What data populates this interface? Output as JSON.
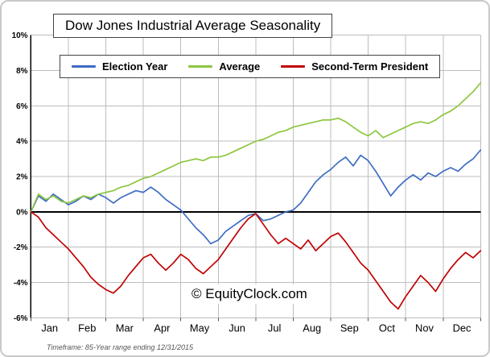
{
  "page": {
    "watermark": "© EquityClock.com",
    "footnote": "Timeframe: 85-Year range ending 12/31/2015"
  },
  "colors": {
    "grid": "#bdbdbd",
    "zero_line": "#000000",
    "axis": "#000000",
    "frame_border": "#c9c9c9"
  },
  "chart_data": {
    "type": "line",
    "title": "Dow Jones Industrial Average Seasonality",
    "legend_position": "top",
    "grid": true,
    "x_axis": {
      "categories": [
        "Jan",
        "Feb",
        "Mar",
        "Apr",
        "May",
        "Jun",
        "Jul",
        "Aug",
        "Sep",
        "Oct",
        "Nov",
        "Dec"
      ],
      "domain_months": [
        0,
        12
      ]
    },
    "y_axis": {
      "min": -6,
      "max": 10,
      "step": 2,
      "unit": "%",
      "tick_labels": [
        "10%",
        "8%",
        "6%",
        "4%",
        "2%",
        "0%",
        "-2%",
        "-4%",
        "-6%"
      ]
    },
    "x_sampling": {
      "start": 0,
      "step": 0.2,
      "note": "x in months, 0 = Jan 1, 12 = Dec 31"
    },
    "series": [
      {
        "name": "Election Year",
        "color": "#3E6CC3",
        "y": [
          0.0,
          0.9,
          0.6,
          1.0,
          0.7,
          0.4,
          0.6,
          0.9,
          0.7,
          1.0,
          0.8,
          0.5,
          0.8,
          1.0,
          1.2,
          1.1,
          1.4,
          1.1,
          0.7,
          0.4,
          0.1,
          -0.4,
          -0.9,
          -1.3,
          -1.8,
          -1.6,
          -1.1,
          -0.8,
          -0.5,
          -0.2,
          -0.1,
          -0.5,
          -0.4,
          -0.2,
          0.0,
          0.1,
          0.5,
          1.1,
          1.7,
          2.1,
          2.4,
          2.8,
          3.1,
          2.6,
          3.2,
          2.9,
          2.3,
          1.6,
          0.9,
          1.4,
          1.8,
          2.1,
          1.8,
          2.2,
          2.0,
          2.3,
          2.5,
          2.3,
          2.7,
          3.0,
          3.5
        ]
      },
      {
        "name": "Average",
        "color": "#8DC63F",
        "y": [
          0.0,
          1.0,
          0.7,
          0.9,
          0.6,
          0.5,
          0.7,
          0.9,
          0.8,
          1.0,
          1.1,
          1.2,
          1.4,
          1.5,
          1.7,
          1.9,
          2.0,
          2.2,
          2.4,
          2.6,
          2.8,
          2.9,
          3.0,
          2.9,
          3.1,
          3.1,
          3.2,
          3.4,
          3.6,
          3.8,
          4.0,
          4.1,
          4.3,
          4.5,
          4.6,
          4.8,
          4.9,
          5.0,
          5.1,
          5.2,
          5.2,
          5.3,
          5.1,
          4.8,
          4.5,
          4.3,
          4.6,
          4.2,
          4.4,
          4.6,
          4.8,
          5.0,
          5.1,
          5.0,
          5.2,
          5.5,
          5.7,
          6.0,
          6.4,
          6.8,
          7.3
        ]
      },
      {
        "name": "Second-Term President",
        "color": "#C00000",
        "y": [
          0.0,
          -0.3,
          -0.9,
          -1.3,
          -1.7,
          -2.1,
          -2.6,
          -3.1,
          -3.7,
          -4.1,
          -4.4,
          -4.6,
          -4.2,
          -3.6,
          -3.1,
          -2.6,
          -2.4,
          -2.9,
          -3.3,
          -2.9,
          -2.4,
          -2.7,
          -3.2,
          -3.5,
          -3.1,
          -2.7,
          -2.1,
          -1.5,
          -0.9,
          -0.4,
          -0.1,
          -0.7,
          -1.3,
          -1.8,
          -1.5,
          -1.8,
          -2.1,
          -1.6,
          -2.2,
          -1.8,
          -1.4,
          -1.2,
          -1.7,
          -2.3,
          -2.9,
          -3.3,
          -3.9,
          -4.5,
          -5.1,
          -5.5,
          -4.8,
          -4.2,
          -3.6,
          -4.0,
          -4.5,
          -3.8,
          -3.2,
          -2.7,
          -2.3,
          -2.6,
          -2.2
        ]
      }
    ]
  }
}
